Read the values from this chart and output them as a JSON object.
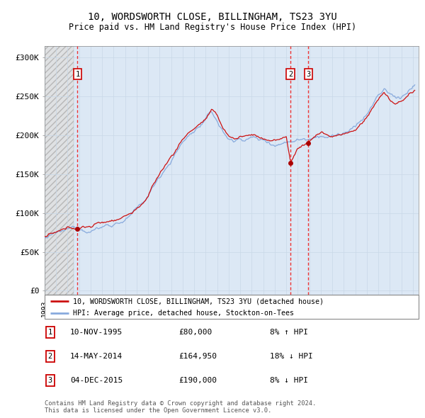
{
  "title1": "10, WORDSWORTH CLOSE, BILLINGHAM, TS23 3YU",
  "title2": "Price paid vs. HM Land Registry's House Price Index (HPI)",
  "ylabel_vals": [
    0,
    50000,
    100000,
    150000,
    200000,
    250000,
    300000
  ],
  "ylabel_strs": [
    "£0",
    "£50K",
    "£100K",
    "£150K",
    "£200K",
    "£250K",
    "£300K"
  ],
  "xlim_start": 1993.0,
  "xlim_end": 2025.5,
  "ylim_min": -5000,
  "ylim_max": 315000,
  "sale_dates": [
    1995.86,
    2014.37,
    2015.92
  ],
  "sale_prices": [
    80000,
    164950,
    190000
  ],
  "sale_labels": [
    "1",
    "2",
    "3"
  ],
  "sale_info": [
    {
      "n": "1",
      "date": "10-NOV-1995",
      "price": "£80,000",
      "rel": "8% ↑ HPI"
    },
    {
      "n": "2",
      "date": "14-MAY-2014",
      "price": "£164,950",
      "rel": "18% ↓ HPI"
    },
    {
      "n": "3",
      "date": "04-DEC-2015",
      "price": "£190,000",
      "rel": "8% ↓ HPI"
    }
  ],
  "legend1": "10, WORDSWORTH CLOSE, BILLINGHAM, TS23 3YU (detached house)",
  "legend2": "HPI: Average price, detached house, Stockton-on-Tees",
  "footnote": "Contains HM Land Registry data © Crown copyright and database right 2024.\nThis data is licensed under the Open Government Licence v3.0.",
  "grid_color": "#c8d8e8",
  "sale_line_color": "#ee3333",
  "hpi_line_color": "#88aadd",
  "price_line_color": "#cc1111",
  "dot_color": "#aa0000",
  "bg_plot": "#dce8f5",
  "hatch_end": 1995.5
}
